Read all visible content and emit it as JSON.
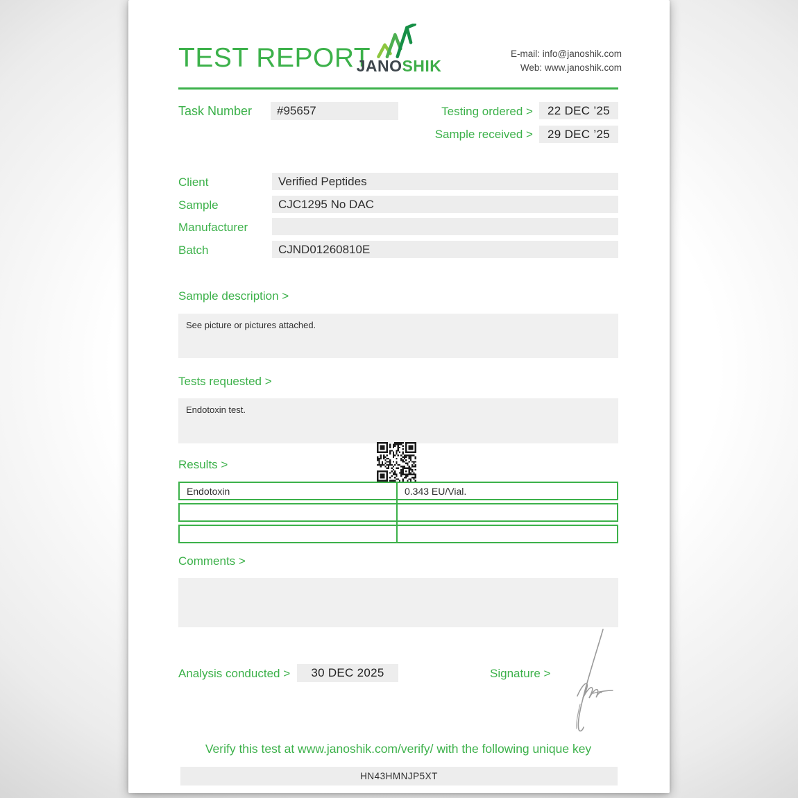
{
  "header": {
    "title": "TEST REPORT",
    "logo": {
      "jano": "JANO",
      "shik": "SHIK"
    },
    "contact": {
      "email_label": "E-mail:",
      "email": "info@janoshik.com",
      "web_label": "Web:",
      "web": "www.janoshik.com"
    }
  },
  "task": {
    "label": "Task Number",
    "value": "#95657"
  },
  "dates": [
    {
      "label": "Testing ordered  >",
      "value": "22 DEC ’25"
    },
    {
      "label": "Sample received >",
      "value": "29 DEC ’25"
    }
  ],
  "info_fields": [
    {
      "label": "Client",
      "value": "Verified Peptides"
    },
    {
      "label": "Sample",
      "value": "CJC1295 No DAC"
    },
    {
      "label": "Manufacturer",
      "value": ""
    },
    {
      "label": "Batch",
      "value": "CJND01260810E"
    }
  ],
  "sections": {
    "sample_description": {
      "heading": "Sample description >",
      "text": "See picture or pictures attached."
    },
    "tests_requested": {
      "heading": "Tests requested >",
      "text": "Endotoxin test."
    },
    "results": {
      "heading": "Results >",
      "rows": [
        {
          "name": "Endotoxin",
          "value": "0.343 EU/Vial."
        },
        {
          "name": "",
          "value": ""
        },
        {
          "name": "",
          "value": ""
        }
      ]
    },
    "comments": {
      "heading": "Comments >",
      "text": ""
    }
  },
  "footer": {
    "analysis_label": "Analysis conducted >",
    "analysis_value": "30 DEC 2025",
    "signature_label": "Signature >",
    "verify_text": "Verify this test at www.janoshik.com/verify/ with the following unique key",
    "verify_key": "HN43HMNJP5XT"
  },
  "colors": {
    "green": "#3cb14a",
    "dark_text": "#2f2f2f",
    "field_bg": "#ededed"
  }
}
